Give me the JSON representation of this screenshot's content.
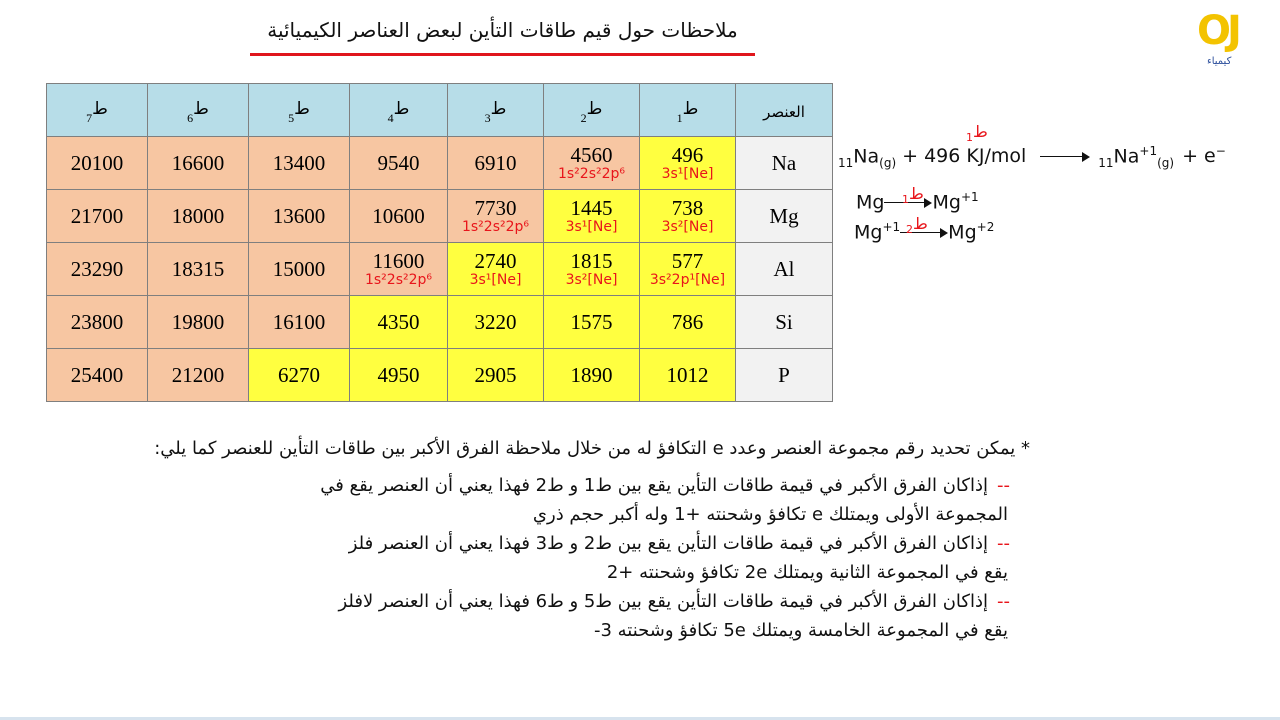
{
  "header": {
    "title": "ملاحظات حول قيم طاقات التأين لبعض العناصر الكيميائية",
    "logo": {
      "mark": "OJ",
      "caption": "كيمياء"
    }
  },
  "table": {
    "header": {
      "element": "العنصر",
      "energies": [
        {
          "symbol": "ط",
          "index": "1"
        },
        {
          "symbol": "ط",
          "index": "2"
        },
        {
          "symbol": "ط",
          "index": "3"
        },
        {
          "symbol": "ط",
          "index": "4"
        },
        {
          "symbol": "ط",
          "index": "5"
        },
        {
          "symbol": "ط",
          "index": "6"
        },
        {
          "symbol": "ط",
          "index": "7"
        }
      ]
    },
    "colors": {
      "header": "#b7dde8",
      "element": "#f2f2f2",
      "core": "#f7c6a2",
      "valence": "#ffff40"
    },
    "rows": [
      {
        "element": "Na",
        "cells": [
          {
            "value": 496,
            "note": "[Ne]3s¹",
            "valence": true
          },
          {
            "value": 4560,
            "note": "1s²2s²2p⁶",
            "valence": false
          },
          {
            "value": 6910,
            "valence": false
          },
          {
            "value": 9540,
            "valence": false
          },
          {
            "value": 13400,
            "valence": false
          },
          {
            "value": 16600,
            "valence": false
          },
          {
            "value": 20100,
            "valence": false
          }
        ]
      },
      {
        "element": "Mg",
        "cells": [
          {
            "value": 738,
            "note": "[Ne]3s²",
            "valence": true
          },
          {
            "value": 1445,
            "note": "[Ne]3s¹",
            "valence": true
          },
          {
            "value": 7730,
            "note": "1s²2s²2p⁶",
            "valence": false
          },
          {
            "value": 10600,
            "valence": false
          },
          {
            "value": 13600,
            "valence": false
          },
          {
            "value": 18000,
            "valence": false
          },
          {
            "value": 21700,
            "valence": false
          }
        ]
      },
      {
        "element": "Al",
        "cells": [
          {
            "value": 577,
            "note": "[Ne]3s²2p¹",
            "valence": true
          },
          {
            "value": 1815,
            "note": "[Ne]3s²",
            "valence": true
          },
          {
            "value": 2740,
            "note": "[Ne]3s¹",
            "valence": true
          },
          {
            "value": 11600,
            "note": "1s²2s²2p⁶",
            "valence": false
          },
          {
            "value": 15000,
            "valence": false
          },
          {
            "value": 18315,
            "valence": false
          },
          {
            "value": 23290,
            "valence": false
          }
        ]
      },
      {
        "element": "Si",
        "cells": [
          {
            "value": 786,
            "valence": true
          },
          {
            "value": 1575,
            "valence": true
          },
          {
            "value": 3220,
            "valence": true
          },
          {
            "value": 4350,
            "valence": true
          },
          {
            "value": 16100,
            "valence": false
          },
          {
            "value": 19800,
            "valence": false
          },
          {
            "value": 23800,
            "valence": false
          }
        ]
      },
      {
        "element": "P",
        "cells": [
          {
            "value": 1012,
            "valence": true
          },
          {
            "value": 1890,
            "valence": true
          },
          {
            "value": 2905,
            "valence": true
          },
          {
            "value": 4950,
            "valence": true
          },
          {
            "value": 6270,
            "valence": true
          },
          {
            "value": 21200,
            "valence": false
          },
          {
            "value": 25400,
            "valence": false
          }
        ]
      }
    ]
  },
  "equations": [
    {
      "label": "ط",
      "label_index": "1",
      "left_index": "11",
      "left_symbol": "Na",
      "left_state": "(g)",
      "energy": "+ 496 KJ/mol",
      "right_index": "11",
      "right_symbol": "Na",
      "right_charge": "+1",
      "right_state": "(g)",
      "electron": "+ e",
      "electron_charge": "−"
    },
    {
      "left_symbol": "Mg",
      "label": "ط",
      "label_index": "1",
      "right_symbol": "Mg",
      "right_charge": "+1"
    },
    {
      "left_symbol": "Mg",
      "left_charge": "+1",
      "label": "ط",
      "label_index": "2",
      "right_symbol": "Mg",
      "right_charge": "+2"
    }
  ],
  "notes": {
    "intro": "* يمكن تحديد رقم مجموعة العنصر وعدد e التكافؤ له من خلال ملاحظة الفرق الأكبر بين طاقات التأين للعنصر كما يلي:",
    "items": [
      {
        "marker": "--",
        "lines": [
          "إذاكان الفرق الأكبر في قيمة طاقات التأين يقع بين ط1 و ط2 فهذا يعني أن العنصر يقع في",
          "المجموعة الأولى ويمتلك e تكافؤ وشحنته +1 وله أكبر حجم ذري"
        ]
      },
      {
        "marker": "--",
        "lines": [
          "إذاكان الفرق الأكبر في قيمة طاقات التأين يقع بين ط2 و ط3 فهذا يعني أن العنصر فلز",
          "يقع في المجموعة الثانية ويمتلك 2e تكافؤ وشحنته +2"
        ]
      },
      {
        "marker": "--",
        "lines": [
          "إذاكان الفرق الأكبر في قيمة طاقات التأين يقع بين ط5 و ط6 فهذا يعني أن العنصر لافلز",
          "يقع في المجموعة الخامسة ويمتلك 5e تكافؤ وشحنته 3-"
        ]
      }
    ]
  }
}
